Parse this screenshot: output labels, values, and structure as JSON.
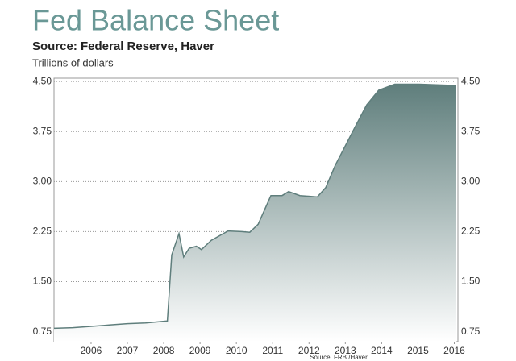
{
  "chart_data": {
    "type": "area",
    "title": "Fed Balance Sheet",
    "subtitle": "Source: Federal Reserve, Haver",
    "ylabel": "Trillions of dollars",
    "note": "Source: FRB /Haver",
    "x": [
      2005.48,
      2006.0,
      2006.5,
      2007.0,
      2007.5,
      2008.0,
      2008.6,
      2008.72,
      2008.92,
      2009.05,
      2009.2,
      2009.4,
      2009.54,
      2009.81,
      2010.27,
      2010.65,
      2010.87,
      2011.1,
      2011.45,
      2011.76,
      2011.94,
      2012.25,
      2012.73,
      2012.96,
      2013.22,
      2013.76,
      2014.09,
      2014.42,
      2014.86,
      2015.53,
      2016.55
    ],
    "values": [
      0.8,
      0.81,
      0.83,
      0.85,
      0.87,
      0.88,
      0.91,
      1.9,
      2.22,
      1.87,
      2.0,
      2.03,
      1.98,
      2.12,
      2.26,
      2.25,
      2.24,
      2.36,
      2.79,
      2.79,
      2.85,
      2.79,
      2.77,
      2.91,
      3.24,
      3.81,
      4.15,
      4.37,
      4.46,
      4.46,
      4.44
    ],
    "color": "#5f7e7c",
    "xlim": [
      2005.48,
      2016.6
    ],
    "xticks": [
      {
        "value": 2006.5,
        "label": "2006"
      },
      {
        "value": 2007.5,
        "label": "2007"
      },
      {
        "value": 2008.5,
        "label": "2008"
      },
      {
        "value": 2009.5,
        "label": "2009"
      },
      {
        "value": 2010.5,
        "label": "2010"
      },
      {
        "value": 2011.5,
        "label": "2011"
      },
      {
        "value": 2012.5,
        "label": "2012"
      },
      {
        "value": 2013.5,
        "label": "2013"
      },
      {
        "value": 2014.5,
        "label": "2014"
      },
      {
        "value": 2015.5,
        "label": "2015"
      },
      {
        "value": 2016.5,
        "label": "2016"
      }
    ],
    "ylim": [
      0.6,
      4.55
    ],
    "yticks": [
      0.75,
      {
        "value": 1.5,
        "label": "1.50"
      },
      2.25,
      {
        "value": 3.0,
        "label": "3.00"
      },
      3.75,
      {
        "value": 4.5,
        "label": "4.50"
      }
    ],
    "grid": true
  }
}
